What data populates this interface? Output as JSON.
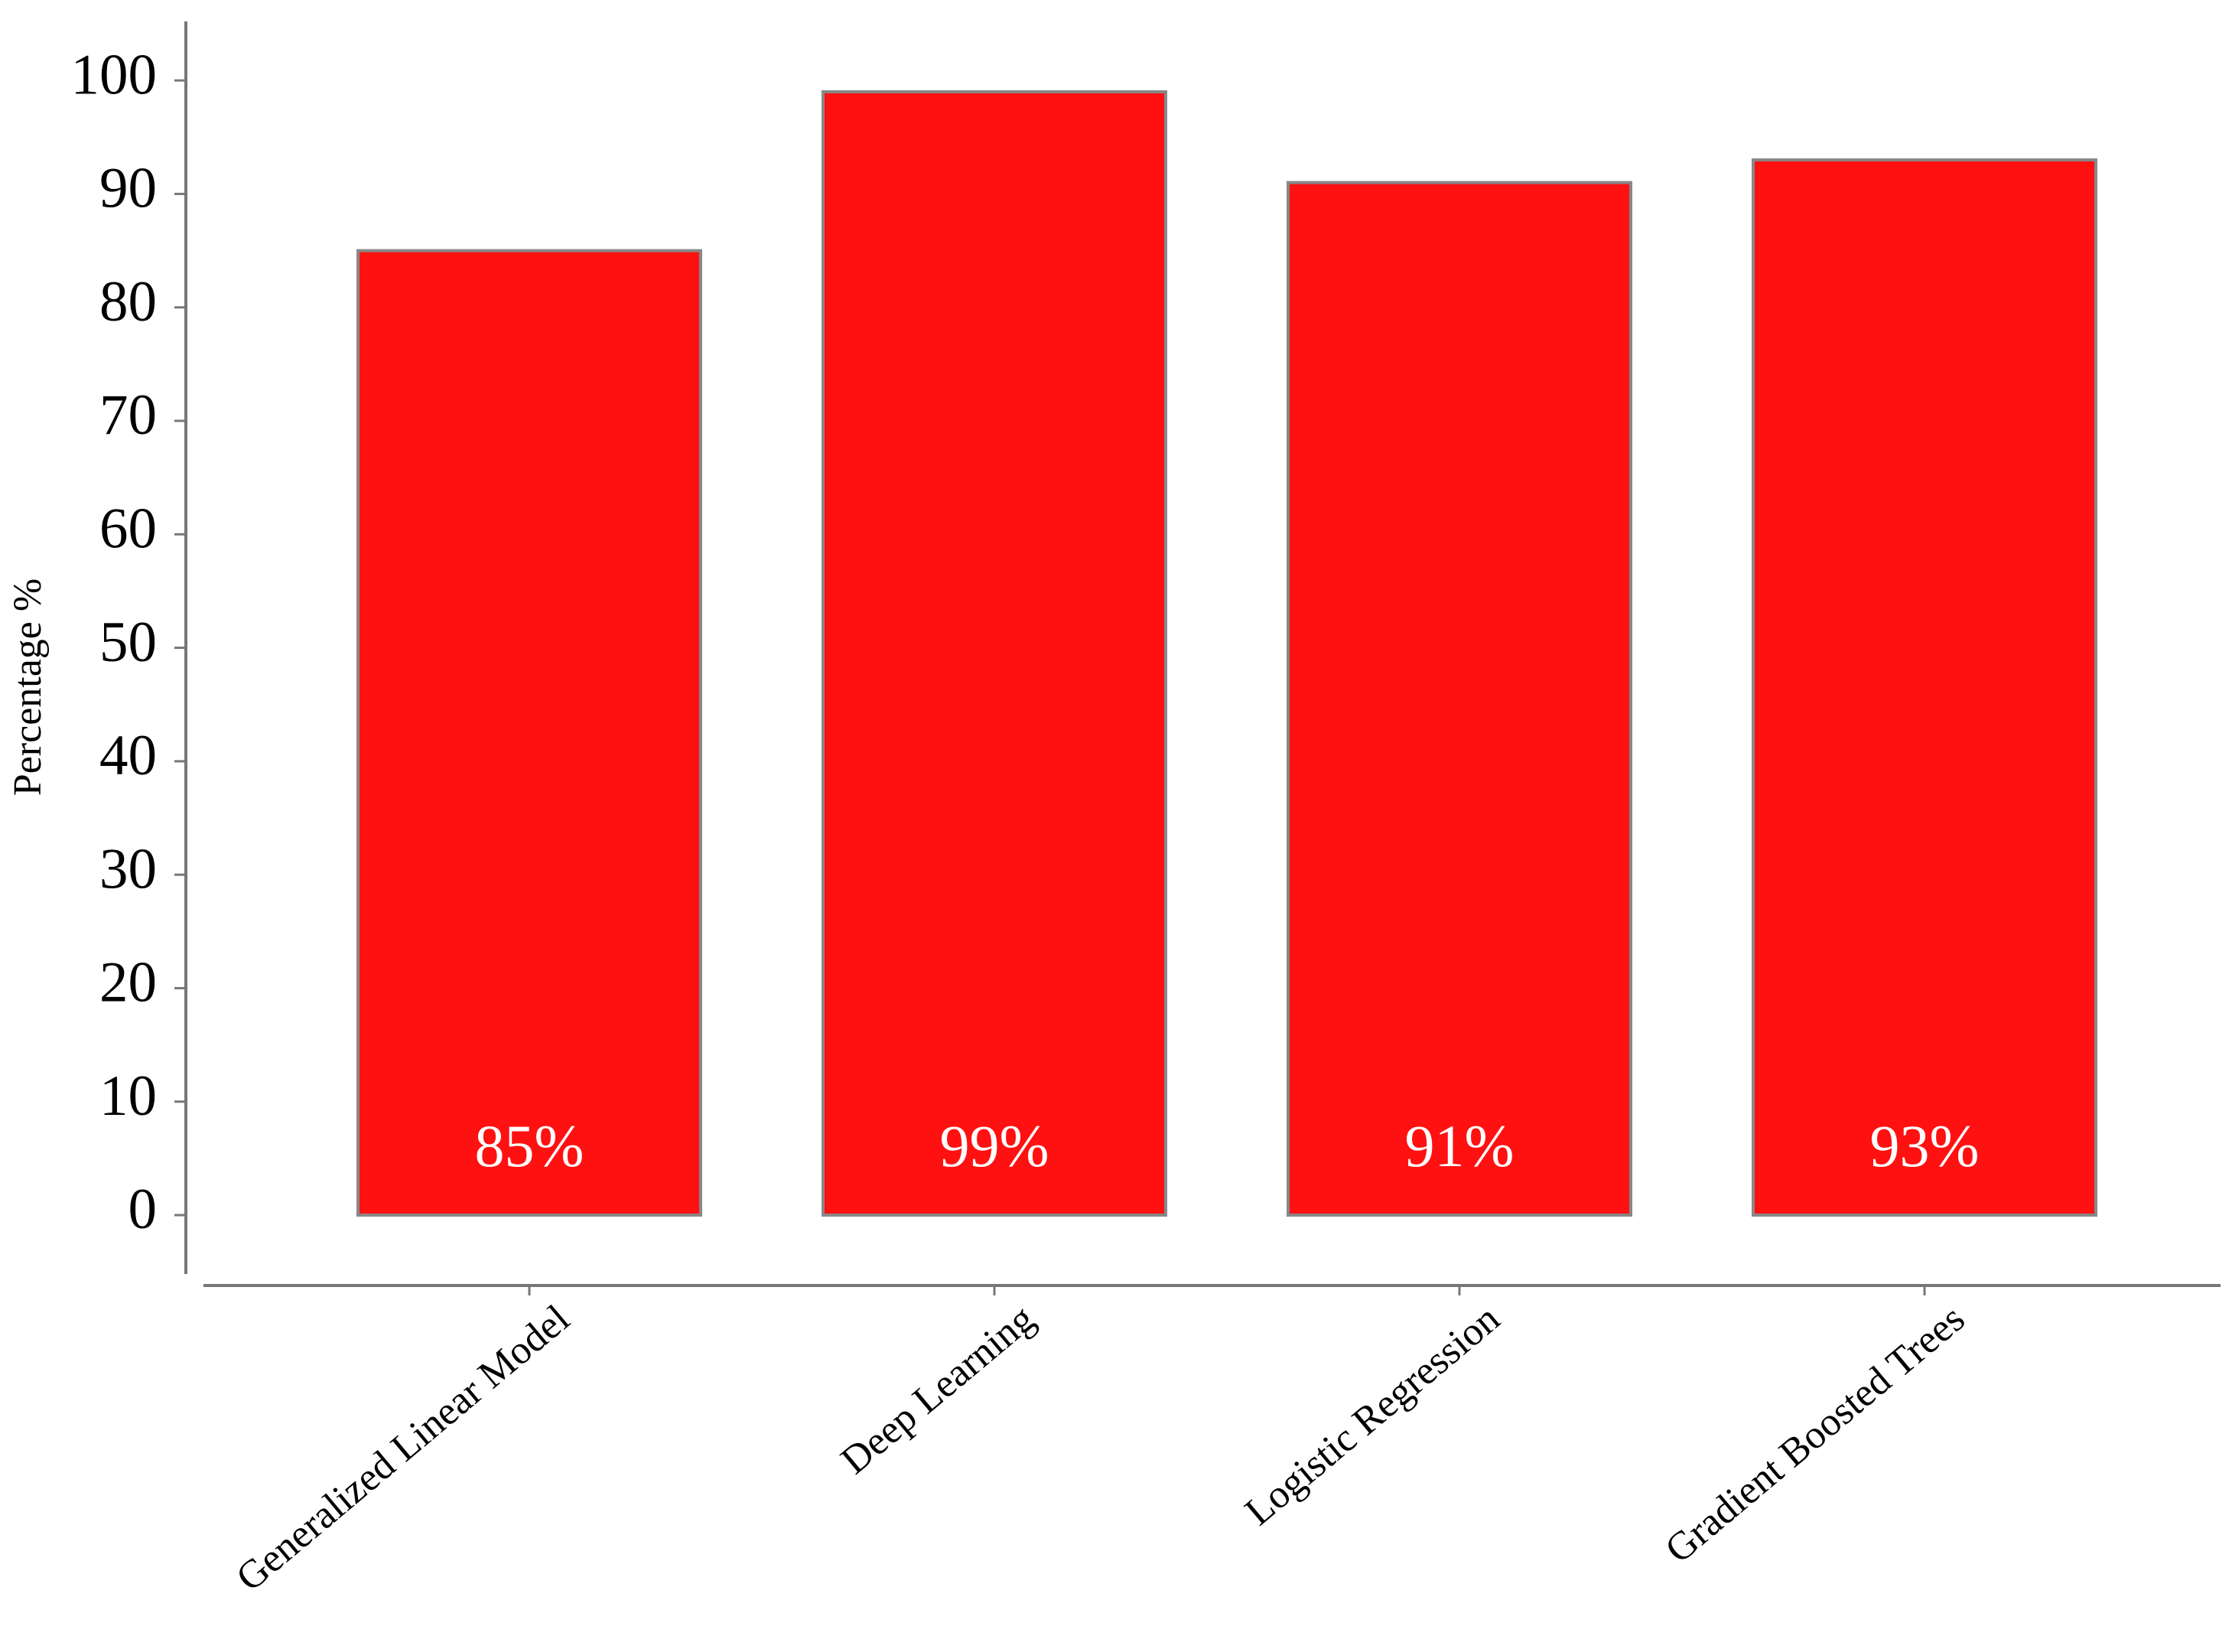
{
  "chart_data": {
    "type": "bar",
    "y_label": "Percentage %",
    "categories": [
      "Generalized Linear Model",
      "Deep Learning",
      "Logistic Regression",
      "Gradient Boosted Trees"
    ],
    "values": [
      85,
      99,
      91,
      93
    ],
    "value_labels": [
      "85%",
      "99%",
      "91%",
      "93%"
    ],
    "color": "#ff1111",
    "ylim": [
      -6,
      105
    ],
    "yticks": [
      0,
      10,
      20,
      30,
      40,
      50,
      60,
      70,
      80,
      90,
      100
    ],
    "grid": false
  }
}
